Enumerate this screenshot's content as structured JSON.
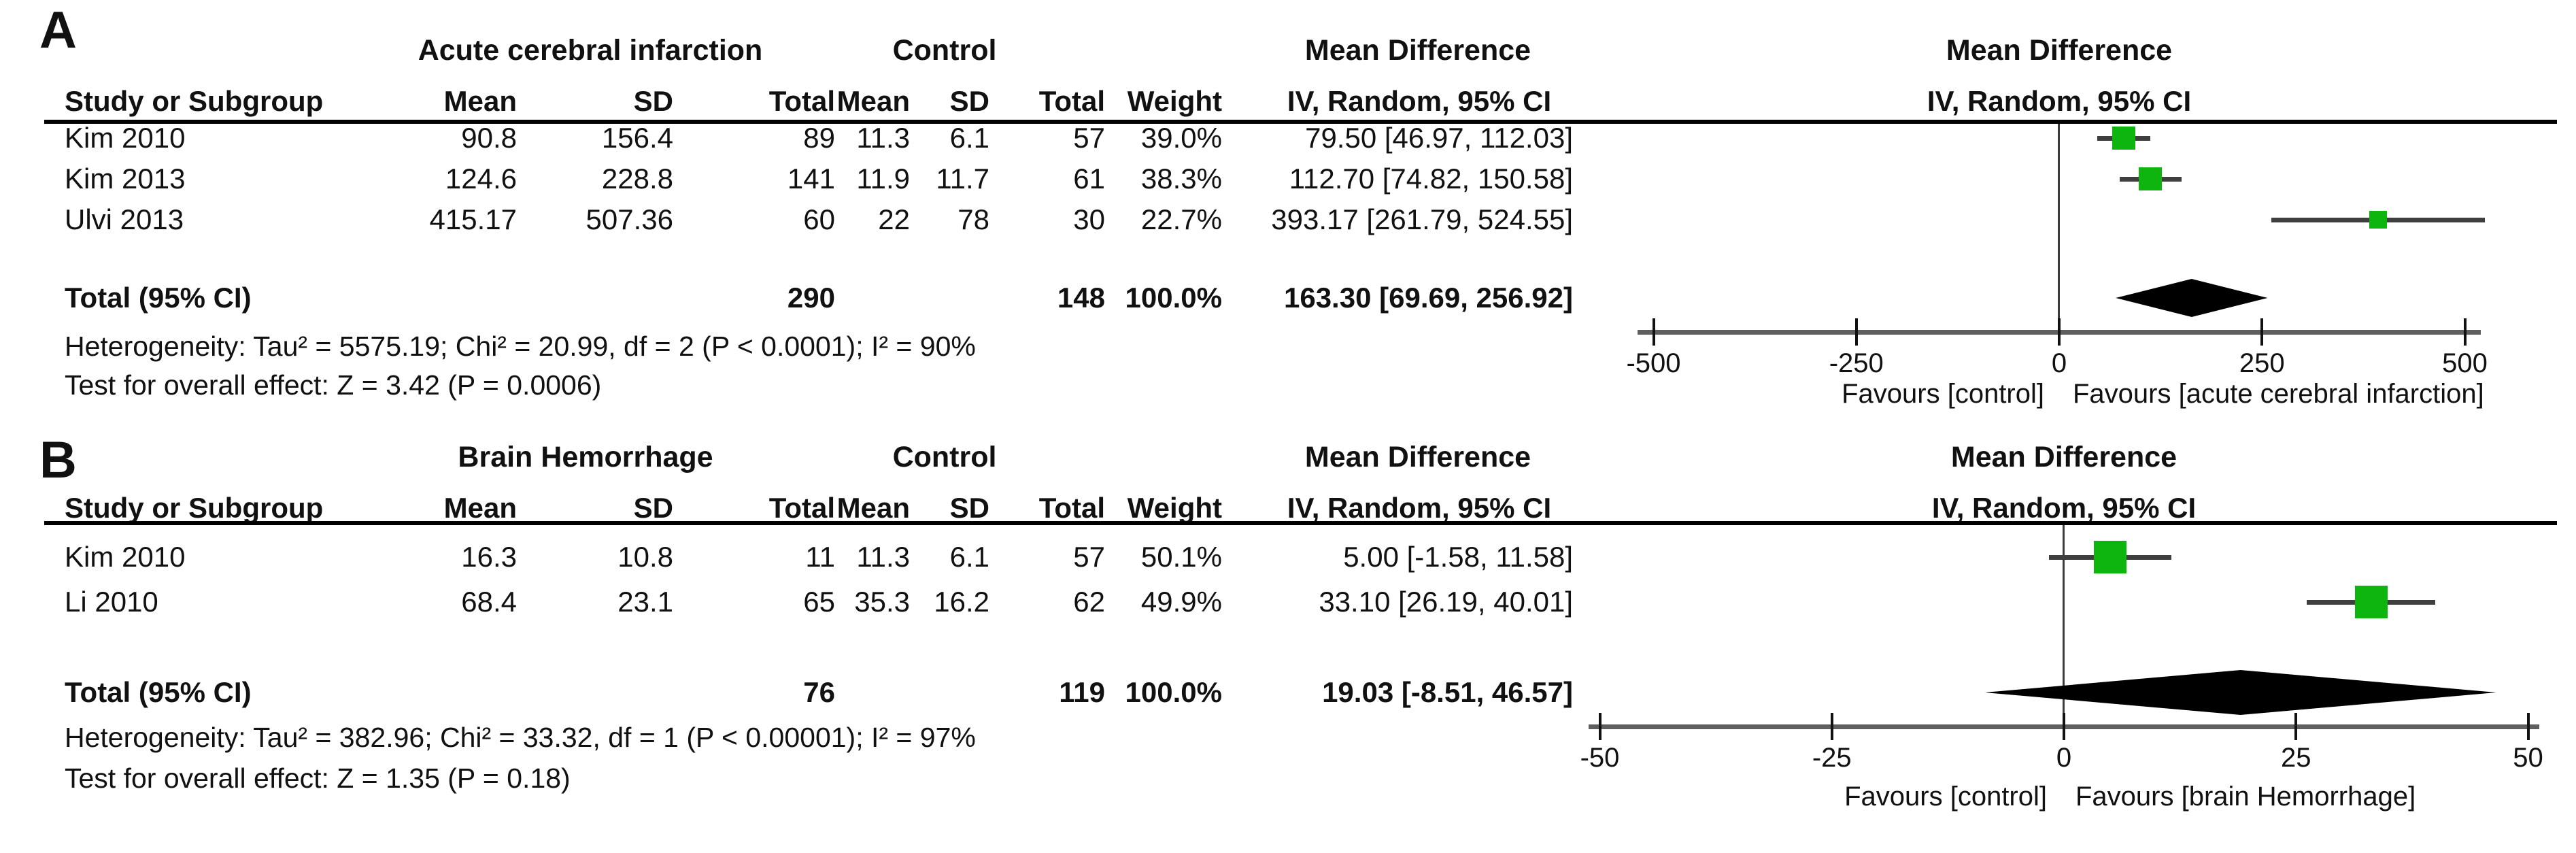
{
  "figure": {
    "panels": [
      {
        "panel_label": "A",
        "group1_header": "Acute cerebral infarction",
        "group2_header": "Control",
        "md_col_header": "Mean Difference",
        "md_plot_header": "Mean Difference",
        "col_study": "Study or Subgroup",
        "col_mean1": "Mean",
        "col_sd1": "SD",
        "col_total1": "Total",
        "col_mean2": "Mean",
        "col_sd2": "SD",
        "col_total2": "Total",
        "col_weight": "Weight",
        "col_ci": "IV, Random, 95% CI",
        "col_ci_plot": "IV, Random, 95% CI",
        "rows": [
          {
            "study": "Kim 2010",
            "mean1": "90.8",
            "sd1": "156.4",
            "total1": "89",
            "mean2": "11.3",
            "sd2": "6.1",
            "total2": "57",
            "weight": "39.0%",
            "ci": "79.50 [46.97, 112.03]"
          },
          {
            "study": "Kim 2013",
            "mean1": "124.6",
            "sd1": "228.8",
            "total1": "141",
            "mean2": "11.9",
            "sd2": "11.7",
            "total2": "61",
            "weight": "38.3%",
            "ci": "112.70 [74.82, 150.58]"
          },
          {
            "study": "Ulvi 2013",
            "mean1": "415.17",
            "sd1": "507.36",
            "total1": "60",
            "mean2": "22",
            "sd2": "78",
            "total2": "30",
            "weight": "22.7%",
            "ci": "393.17 [261.79, 524.55]"
          }
        ],
        "total": {
          "label": "Total (95% CI)",
          "total1": "290",
          "total2": "148",
          "weight": "100.0%",
          "ci": "163.30 [69.69, 256.92]"
        },
        "heterogeneity": "Heterogeneity: Tau² = 5575.19; Chi² = 20.99, df = 2 (P < 0.0001); I² = 90%",
        "overall_effect": "Test for overall effect: Z = 3.42 (P = 0.0006)",
        "favours_left": "Favours [control]",
        "favours_right": "Favours [acute cerebral infarction]"
      },
      {
        "panel_label": "B",
        "group1_header": "Brain Hemorrhage",
        "group2_header": "Control",
        "md_col_header": "Mean Difference",
        "md_plot_header": "Mean Difference",
        "col_study": "Study or Subgroup",
        "col_mean1": "Mean",
        "col_sd1": "SD",
        "col_total1": "Total",
        "col_mean2": "Mean",
        "col_sd2": "SD",
        "col_total2": "Total",
        "col_weight": "Weight",
        "col_ci": "IV, Random, 95% CI",
        "col_ci_plot": "IV, Random, 95% CI",
        "rows": [
          {
            "study": "Kim 2010",
            "mean1": "16.3",
            "sd1": "10.8",
            "total1": "11",
            "mean2": "11.3",
            "sd2": "6.1",
            "total2": "57",
            "weight": "50.1%",
            "ci": "5.00 [-1.58, 11.58]"
          },
          {
            "study": "Li 2010",
            "mean1": "68.4",
            "sd1": "23.1",
            "total1": "65",
            "mean2": "35.3",
            "sd2": "16.2",
            "total2": "62",
            "weight": "49.9%",
            "ci": "33.10 [26.19, 40.01]"
          }
        ],
        "total": {
          "label": "Total (95% CI)",
          "total1": "76",
          "total2": "119",
          "weight": "100.0%",
          "ci": "19.03 [-8.51, 46.57]"
        },
        "heterogeneity": "Heterogeneity: Tau² = 382.96; Chi² = 33.32, df = 1 (P < 0.00001); I² = 97%",
        "overall_effect": "Test for overall effect: Z = 1.35 (P = 0.18)",
        "favours_left": "Favours [control]",
        "favours_right": "Favours [brain Hemorrhage]"
      }
    ]
  },
  "chart_data": [
    {
      "type": "scatter",
      "subtype": "forest-plot",
      "panel": "A",
      "title": "Mean Difference IV, Random, 95% CI",
      "effect_measure": "Mean Difference (IV, Random, 95% CI)",
      "studies": [
        {
          "name": "Kim 2010",
          "md": 79.5,
          "ci_low": 46.97,
          "ci_high": 112.03,
          "weight_pct": 39.0
        },
        {
          "name": "Kim 2013",
          "md": 112.7,
          "ci_low": 74.82,
          "ci_high": 150.58,
          "weight_pct": 38.3
        },
        {
          "name": "Ulvi 2013",
          "md": 393.17,
          "ci_low": 261.79,
          "ci_high": 524.55,
          "weight_pct": 22.7
        }
      ],
      "total": {
        "md": 163.3,
        "ci_low": 69.69,
        "ci_high": 256.92
      },
      "xlim": [
        -500,
        500
      ],
      "ticks": [
        -500,
        -250,
        0,
        250,
        500
      ],
      "xlabel_left": "Favours [control]",
      "xlabel_right": "Favours [acute cerebral infarction]",
      "marker_color": "#0fb50f",
      "diamond_color": "#000000"
    },
    {
      "type": "scatter",
      "subtype": "forest-plot",
      "panel": "B",
      "title": "Mean Difference IV, Random, 95% CI",
      "effect_measure": "Mean Difference (IV, Random, 95% CI)",
      "studies": [
        {
          "name": "Kim 2010",
          "md": 5.0,
          "ci_low": -1.58,
          "ci_high": 11.58,
          "weight_pct": 50.1
        },
        {
          "name": "Li 2010",
          "md": 33.1,
          "ci_low": 26.19,
          "ci_high": 40.01,
          "weight_pct": 49.9
        }
      ],
      "total": {
        "md": 19.03,
        "ci_low": -8.51,
        "ci_high": 46.57
      },
      "xlim": [
        -50,
        50
      ],
      "ticks": [
        -50,
        -25,
        0,
        25,
        50
      ],
      "xlabel_left": "Favours [control]",
      "xlabel_right": "Favours [brain Hemorrhage]",
      "marker_color": "#0fb50f",
      "diamond_color": "#000000"
    }
  ]
}
